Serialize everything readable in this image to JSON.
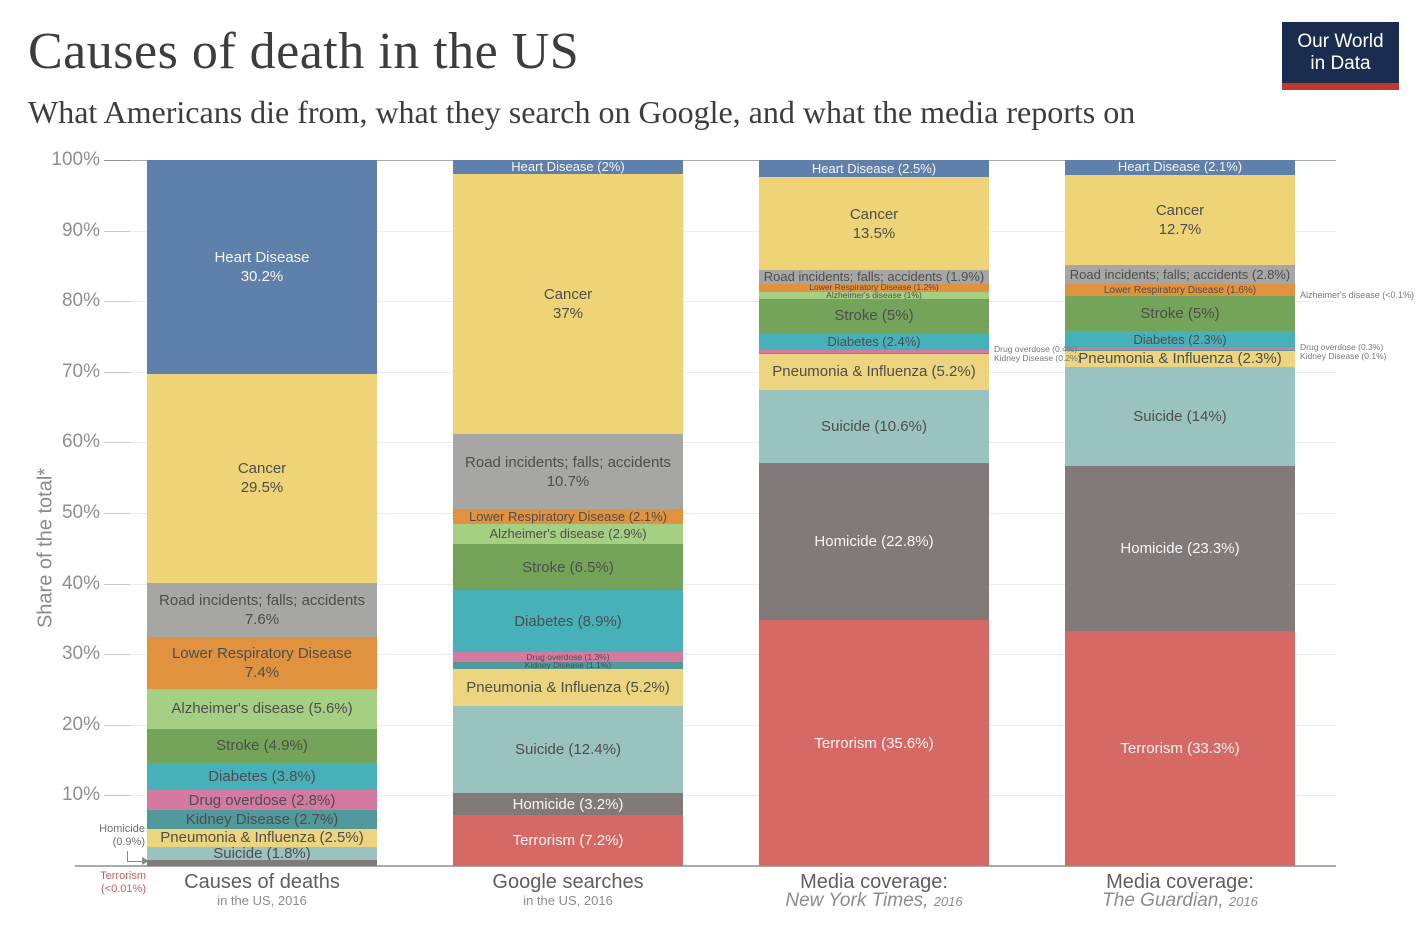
{
  "logo": {
    "line1": "Our World",
    "line2": "in Data"
  },
  "chart_data": {
    "type": "bar",
    "stacked": true,
    "normalized_percent": true,
    "title": "Causes of death in the US",
    "subtitle": "What Americans die from, what they search on Google, and what the media reports on",
    "xlabel": "",
    "ylabel": "Share of the total*",
    "ylim": [
      0,
      100
    ],
    "grid": true,
    "legend": "none",
    "yticks": [
      "100%",
      "90%",
      "80%",
      "70%",
      "60%",
      "50%",
      "40%",
      "30%",
      "20%",
      "10%"
    ],
    "categories": [
      "Heart Disease",
      "Cancer",
      "Road incidents; falls; accidents",
      "Lower Respiratory Disease",
      "Alzheimer's disease",
      "Stroke",
      "Diabetes",
      "Drug overdose",
      "Kidney Disease",
      "Pneumonia & Influenza",
      "Suicide",
      "Homicide",
      "Terrorism"
    ],
    "palette": {
      "heart": "#5e80ab",
      "cancer": "#efd377",
      "road": "#a6a6a5",
      "lrd": "#e0923e",
      "alzheimers": "#a5d084",
      "stroke": "#73a45a",
      "diabetes": "#47b1ba",
      "drug": "#d47aa1",
      "kidney": "#51999b",
      "pneumonia": "#ecd57e",
      "suicide": "#9ac2be",
      "homicide": "#827a79",
      "terrorism": "#d66865"
    },
    "columns": [
      {
        "id": "deaths",
        "footer": {
          "line1": "Causes of deaths",
          "line2": "in the US, 2016"
        },
        "segments": [
          {
            "cause": "heart",
            "value": 30.2,
            "lines": [
              "Heart Disease",
              "30.2%"
            ],
            "style": "lg light"
          },
          {
            "cause": "cancer",
            "value": 29.5,
            "lines": [
              "Cancer",
              "29.5%"
            ],
            "style": "lg dark"
          },
          {
            "cause": "road",
            "value": 7.6,
            "lines": [
              "Road incidents; falls; accidents",
              "7.6%"
            ],
            "style": "lg dark"
          },
          {
            "cause": "lrd",
            "value": 7.4,
            "lines": [
              "Lower Respiratory Disease",
              "7.4%"
            ],
            "style": "lg dark"
          },
          {
            "cause": "alzheimers",
            "value": 5.6,
            "lines": [
              "Alzheimer's disease (5.6%)"
            ],
            "style": "lg dark"
          },
          {
            "cause": "stroke",
            "value": 4.9,
            "lines": [
              "Stroke (4.9%)"
            ],
            "style": "lg dark"
          },
          {
            "cause": "diabetes",
            "value": 3.8,
            "lines": [
              "Diabetes (3.8%)"
            ],
            "style": "lg dark"
          },
          {
            "cause": "drug",
            "value": 2.8,
            "lines": [
              "Drug overdose (2.8%)"
            ],
            "style": "lg dark"
          },
          {
            "cause": "kidney",
            "value": 2.7,
            "lines": [
              "Kidney Disease (2.7%)"
            ],
            "style": "lg dark"
          },
          {
            "cause": "pneumonia",
            "value": 2.5,
            "lines": [
              "Pneumonia & Influenza (2.5%)"
            ],
            "style": "lg dark"
          },
          {
            "cause": "suicide",
            "value": 1.8,
            "lines": [
              "Suicide (1.8%)"
            ],
            "style": "lg dark"
          },
          {
            "cause": "homicide",
            "value": 0.9,
            "lines": [],
            "style": ""
          },
          {
            "cause": "terrorism",
            "value": 0.01,
            "lines": [],
            "style": ""
          }
        ]
      },
      {
        "id": "google",
        "footer": {
          "line1": "Google searches",
          "line2": "in the US, 2016"
        },
        "segments": [
          {
            "cause": "heart",
            "value": 2.0,
            "lines": [
              "Heart Disease (2%)"
            ],
            "style": "md light"
          },
          {
            "cause": "cancer",
            "value": 37.0,
            "lines": [
              "Cancer",
              "37%"
            ],
            "style": "lg dark"
          },
          {
            "cause": "road",
            "value": 10.7,
            "lines": [
              "Road incidents; falls; accidents",
              "10.7%"
            ],
            "style": "lg dark"
          },
          {
            "cause": "lrd",
            "value": 2.1,
            "lines": [
              "Lower Respiratory Disease (2.1%)"
            ],
            "style": "md dark"
          },
          {
            "cause": "alzheimers",
            "value": 2.9,
            "lines": [
              "Alzheimer's disease (2.9%)"
            ],
            "style": "md dark"
          },
          {
            "cause": "stroke",
            "value": 6.5,
            "lines": [
              "Stroke (6.5%)"
            ],
            "style": "lg dark"
          },
          {
            "cause": "diabetes",
            "value": 8.9,
            "lines": [
              "Diabetes (8.9%)"
            ],
            "style": "lg dark"
          },
          {
            "cause": "drug",
            "value": 1.3,
            "lines": [
              "Drug overdose (1.3%)"
            ],
            "style": "xs dark"
          },
          {
            "cause": "kidney",
            "value": 1.1,
            "lines": [
              "Kidney Disease (1.1%)"
            ],
            "style": "xs dark"
          },
          {
            "cause": "pneumonia",
            "value": 5.2,
            "lines": [
              "Pneumonia & Influenza (5.2%)"
            ],
            "style": "lg dark"
          },
          {
            "cause": "suicide",
            "value": 12.4,
            "lines": [
              "Suicide (12.4%)"
            ],
            "style": "lg dark"
          },
          {
            "cause": "homicide",
            "value": 3.2,
            "lines": [
              "Homicide (3.2%)"
            ],
            "style": "lg light"
          },
          {
            "cause": "terrorism",
            "value": 7.2,
            "lines": [
              "Terrorism (7.2%)"
            ],
            "style": "lg light"
          }
        ]
      },
      {
        "id": "nyt",
        "footer": {
          "line1": "Media coverage:",
          "source": "New York Times,",
          "year": "2016"
        },
        "segments": [
          {
            "cause": "heart",
            "value": 2.5,
            "lines": [
              "Heart Disease (2.5%)"
            ],
            "style": "md light"
          },
          {
            "cause": "cancer",
            "value": 13.5,
            "lines": [
              "Cancer",
              "13.5%"
            ],
            "style": "lg dark"
          },
          {
            "cause": "road",
            "value": 1.9,
            "lines": [
              "Road incidents; falls; accidents (1.9%)"
            ],
            "style": "md dark"
          },
          {
            "cause": "lrd",
            "value": 1.2,
            "lines": [
              "Lower Respiratory Disease (1.2%)"
            ],
            "style": "xs dark"
          },
          {
            "cause": "alzheimers",
            "value": 1.0,
            "lines": [
              "Alzheimer's disease (1%)"
            ],
            "style": "xs dark"
          },
          {
            "cause": "stroke",
            "value": 5.0,
            "lines": [
              "Stroke (5%)"
            ],
            "style": "lg dark"
          },
          {
            "cause": "diabetes",
            "value": 2.4,
            "lines": [
              "Diabetes (2.4%)"
            ],
            "style": "md dark"
          },
          {
            "cause": "drug",
            "value": 0.4,
            "lines": [],
            "style": ""
          },
          {
            "cause": "kidney",
            "value": 0.2,
            "lines": [],
            "style": ""
          },
          {
            "cause": "pneumonia",
            "value": 5.2,
            "lines": [
              "Pneumonia & Influenza (5.2%)"
            ],
            "style": "lg dark"
          },
          {
            "cause": "suicide",
            "value": 10.6,
            "lines": [
              "Suicide (10.6%)"
            ],
            "style": "lg dark"
          },
          {
            "cause": "homicide",
            "value": 22.8,
            "lines": [
              "Homicide (22.8%)"
            ],
            "style": "lg light"
          },
          {
            "cause": "terrorism",
            "value": 35.6,
            "lines": [
              "Terrorism (35.6%)"
            ],
            "style": "lg light"
          }
        ]
      },
      {
        "id": "guardian",
        "footer": {
          "line1": "Media coverage:",
          "source": "The Guardian,",
          "year": "2016"
        },
        "segments": [
          {
            "cause": "heart",
            "value": 2.1,
            "lines": [
              "Heart Disease (2.1%)"
            ],
            "style": "md light"
          },
          {
            "cause": "cancer",
            "value": 12.7,
            "lines": [
              "Cancer",
              "12.7%"
            ],
            "style": "lg dark"
          },
          {
            "cause": "road",
            "value": 2.8,
            "lines": [
              "Road incidents; falls; accidents (2.8%)"
            ],
            "style": "md dark"
          },
          {
            "cause": "lrd",
            "value": 1.6,
            "lines": [
              "Lower Respiratory Disease (1.6%)"
            ],
            "style": "sm dark"
          },
          {
            "cause": "alzheimers",
            "value": 0.05,
            "lines": [],
            "style": ""
          },
          {
            "cause": "stroke",
            "value": 5.0,
            "lines": [
              "Stroke (5%)"
            ],
            "style": "lg dark"
          },
          {
            "cause": "diabetes",
            "value": 2.3,
            "lines": [
              "Diabetes (2.3%)"
            ],
            "style": "md dark"
          },
          {
            "cause": "drug",
            "value": 0.3,
            "lines": [],
            "style": ""
          },
          {
            "cause": "kidney",
            "value": 0.1,
            "lines": [],
            "style": ""
          },
          {
            "cause": "pneumonia",
            "value": 2.3,
            "lines": [
              "Pneumonia & Influenza (2.3%)"
            ],
            "style": "lg dark"
          },
          {
            "cause": "suicide",
            "value": 14.0,
            "lines": [
              "Suicide (14%)"
            ],
            "style": "lg dark"
          },
          {
            "cause": "homicide",
            "value": 23.3,
            "lines": [
              "Homicide (23.3%)"
            ],
            "style": "lg light"
          },
          {
            "cause": "terrorism",
            "value": 33.3,
            "lines": [
              "Terrorism (33.3%)"
            ],
            "style": "lg light"
          }
        ]
      }
    ]
  },
  "annotations": {
    "homicide": {
      "line1": "Homicide",
      "line2": "(0.9%)"
    },
    "terrorism": {
      "line1": "Terrorism",
      "line2": "(<0.01%)"
    },
    "nyt_drug": "Drug overdose (0.4%)",
    "nyt_kidney": "Kidney Disease (0.2%)",
    "guardian_alzheimers": "Alzheimer's disease (<0.1%)",
    "guardian_drug": "Drug overdose (0.3%)",
    "guardian_kidney": "Kidney Disease (0.1%)"
  }
}
